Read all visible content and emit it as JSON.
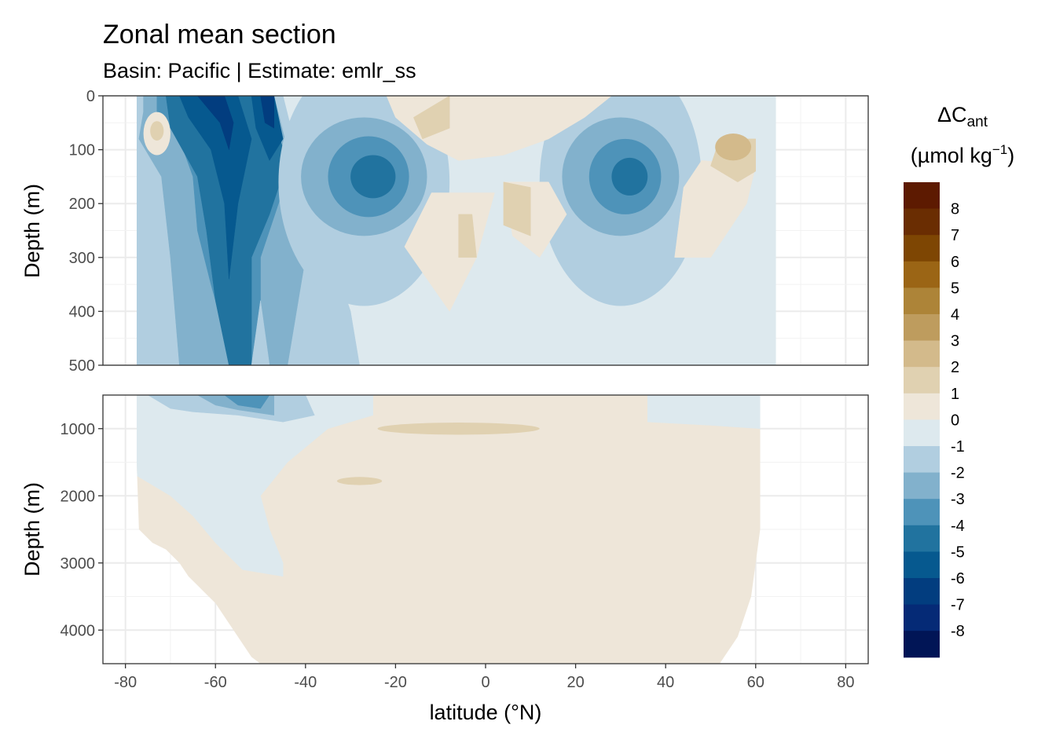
{
  "chart_data": {
    "type": "heatmap",
    "title": "Zonal mean section",
    "subtitle": "Basin: Pacific | Estimate: emlr_ss",
    "xlabel": "latitude (°N)",
    "xlim": [
      -85,
      85
    ],
    "x_ticks": [
      -80,
      -60,
      -40,
      -20,
      0,
      20,
      40,
      60,
      80
    ],
    "grid": true,
    "colors": {
      "-8": "#011556",
      "-7": "#052a76",
      "-6": "#023d7f",
      "-5": "#06598f",
      "-4": "#21739f",
      "-3": "#4e93b9",
      "-2": "#82b1cc",
      "-1": "#b1cee0",
      "0": "#dde9ee",
      "1": "#eee6d9",
      "2": "#e0d1b1",
      "3": "#d3ba8b",
      "4": "#be9c5e",
      "5": "#ad8438",
      "6": "#9b6515",
      "7": "#7e4603",
      "8": "#6a2d02",
      "9": "#5d1a01"
    },
    "panels": [
      {
        "name": "upper",
        "ylabel": "Depth (m)",
        "ylim": [
          500,
          0
        ],
        "y_ticks": [
          0,
          100,
          200,
          300,
          400,
          500
        ],
        "data_extent": {
          "lat_min": -77.5,
          "lat_max": 64.5
        },
        "background": 0,
        "regions": [
          {
            "value": -1,
            "type": "poly",
            "points": [
              [
                -77.5,
                0
              ],
              [
                -45,
                0
              ],
              [
                -42,
                100
              ],
              [
                -36,
                200
              ],
              [
                -34,
                300
              ],
              [
                -30,
                400
              ],
              [
                -28,
                500
              ],
              [
                -77.5,
                500
              ]
            ]
          },
          {
            "value": -2,
            "type": "poly",
            "points": [
              [
                -76,
                0
              ],
              [
                -47,
                0
              ],
              [
                -44,
                100
              ],
              [
                -42,
                200
              ],
              [
                -40,
                300
              ],
              [
                -42,
                400
              ],
              [
                -44,
                500
              ],
              [
                -68,
                500
              ],
              [
                -70,
                300
              ],
              [
                -72,
                150
              ],
              [
                -77,
                80
              ],
              [
                -76,
                30
              ]
            ]
          },
          {
            "value": -3,
            "type": "poly",
            "points": [
              [
                -73,
                0
              ],
              [
                -48,
                0
              ],
              [
                -44,
                150
              ],
              [
                -50,
                300
              ],
              [
                -50,
                500
              ],
              [
                -56,
                500
              ],
              [
                -61,
                350
              ],
              [
                -64,
                250
              ],
              [
                -65,
                150
              ],
              [
                -68,
                80
              ],
              [
                -73,
                30
              ]
            ]
          },
          {
            "value": -4,
            "type": "poly",
            "points": [
              [
                -71,
                0
              ],
              [
                -50,
                0
              ],
              [
                -47,
                50
              ],
              [
                -44,
                120
              ],
              [
                -48,
                220
              ],
              [
                -52,
                300
              ],
              [
                -52,
                500
              ],
              [
                -57,
                500
              ],
              [
                -60,
                380
              ],
              [
                -62,
                250
              ],
              [
                -64,
                150
              ],
              [
                -70,
                60
              ]
            ]
          },
          {
            "value": -5,
            "type": "poly",
            "points": [
              [
                -68,
                0
              ],
              [
                -55,
                0
              ],
              [
                -52,
                80
              ],
              [
                -55,
                200
              ],
              [
                -57,
                340
              ],
              [
                -58,
                200
              ],
              [
                -61,
                100
              ],
              [
                -66,
                40
              ]
            ]
          },
          {
            "value": -5,
            "type": "poly",
            "points": [
              [
                -52,
                0
              ],
              [
                -47,
                0
              ],
              [
                -45,
                80
              ],
              [
                -48,
                120
              ],
              [
                -51,
                60
              ]
            ]
          },
          {
            "value": -6,
            "type": "poly",
            "points": [
              [
                -64,
                0
              ],
              [
                -58,
                0
              ],
              [
                -56,
                50
              ],
              [
                -57,
                100
              ],
              [
                -59,
                50
              ]
            ]
          },
          {
            "value": -6,
            "type": "poly",
            "points": [
              [
                -50,
                0
              ],
              [
                -47,
                0
              ],
              [
                -47,
                60
              ],
              [
                -49,
                50
              ]
            ]
          },
          {
            "value": -1,
            "type": "poly",
            "points": [
              [
                -52,
                500
              ],
              [
                -50,
                380
              ],
              [
                -48,
                500
              ]
            ]
          },
          {
            "value": -1,
            "type": "ellipse",
            "cx": -27,
            "cy": 160,
            "rx": 19,
            "ry": 230
          },
          {
            "value": -2,
            "type": "ellipse",
            "cx": -27,
            "cy": 150,
            "rx": 14,
            "ry": 110
          },
          {
            "value": -3,
            "type": "ellipse",
            "cx": -26,
            "cy": 150,
            "rx": 9,
            "ry": 75
          },
          {
            "value": -4,
            "type": "ellipse",
            "cx": -25,
            "cy": 150,
            "rx": 5,
            "ry": 40
          },
          {
            "value": -1,
            "type": "ellipse",
            "cx": 30,
            "cy": 160,
            "rx": 18,
            "ry": 230
          },
          {
            "value": -2,
            "type": "ellipse",
            "cx": 30,
            "cy": 150,
            "rx": 13,
            "ry": 110
          },
          {
            "value": -3,
            "type": "ellipse",
            "cx": 31,
            "cy": 150,
            "rx": 8,
            "ry": 70
          },
          {
            "value": -4,
            "type": "ellipse",
            "cx": 32,
            "cy": 150,
            "rx": 4,
            "ry": 35
          },
          {
            "value": 1,
            "type": "ellipse",
            "cx": -73,
            "cy": 70,
            "rx": 3,
            "ry": 40
          },
          {
            "value": 2,
            "type": "ellipse",
            "cx": -73,
            "cy": 65,
            "rx": 1.5,
            "ry": 18
          },
          {
            "value": 1,
            "type": "poly",
            "points": [
              [
                -22,
                0
              ],
              [
                -20,
                40
              ],
              [
                -13,
                90
              ],
              [
                -6,
                120
              ],
              [
                4,
                110
              ],
              [
                14,
                80
              ],
              [
                22,
                40
              ],
              [
                28,
                0
              ]
            ]
          },
          {
            "value": 1,
            "type": "poly",
            "points": [
              [
                -12,
                180
              ],
              [
                -18,
                280
              ],
              [
                -8,
                400
              ],
              [
                -2,
                300
              ],
              [
                2,
                180
              ]
            ]
          },
          {
            "value": 1,
            "type": "poly",
            "points": [
              [
                4,
                160
              ],
              [
                6,
                260
              ],
              [
                12,
                300
              ],
              [
                18,
                220
              ],
              [
                14,
                160
              ]
            ]
          },
          {
            "value": 2,
            "type": "poly",
            "points": [
              [
                -8,
                0
              ],
              [
                -8,
                60
              ],
              [
                -14,
                80
              ],
              [
                -16,
                40
              ]
            ]
          },
          {
            "value": 2,
            "type": "poly",
            "points": [
              [
                4,
                160
              ],
              [
                4,
                240
              ],
              [
                10,
                260
              ],
              [
                10,
                170
              ]
            ]
          },
          {
            "value": 2,
            "type": "poly",
            "points": [
              [
                -6,
                220
              ],
              [
                -6,
                300
              ],
              [
                -2,
                300
              ],
              [
                -3,
                220
              ]
            ]
          },
          {
            "value": 1,
            "type": "poly",
            "points": [
              [
                48,
                120
              ],
              [
                44,
                170
              ],
              [
                42,
                300
              ],
              [
                50,
                300
              ],
              [
                58,
                200
              ],
              [
                60,
                130
              ]
            ]
          },
          {
            "value": 2,
            "type": "poly",
            "points": [
              [
                52,
                80
              ],
              [
                50,
                130
              ],
              [
                56,
                160
              ],
              [
                60,
                140
              ],
              [
                60,
                80
              ]
            ]
          },
          {
            "value": 3,
            "type": "ellipse",
            "cx": 55,
            "cy": 95,
            "rx": 4,
            "ry": 25
          }
        ]
      },
      {
        "name": "lower",
        "ylabel": "Depth (m)",
        "ylim": [
          4500,
          500
        ],
        "y_ticks": [
          1000,
          2000,
          3000,
          4000
        ],
        "data_extent": {
          "lat_min": -77.5,
          "lat_max": 61
        },
        "background": 1,
        "regions": [
          {
            "value": 0,
            "type": "poly",
            "points": [
              [
                -77.5,
                500
              ],
              [
                -25,
                500
              ],
              [
                -25,
                800
              ],
              [
                -35,
                1000
              ],
              [
                -44,
                1500
              ],
              [
                -50,
                2000
              ],
              [
                -48,
                2500
              ],
              [
                -45,
                3000
              ],
              [
                -45,
                3200
              ],
              [
                -54,
                3100
              ],
              [
                -60,
                2700
              ],
              [
                -65,
                2300
              ],
              [
                -70,
                2000
              ],
              [
                -75,
                1800
              ],
              [
                -77.5,
                1700
              ]
            ]
          },
          {
            "value": 0,
            "type": "poly",
            "points": [
              [
                36,
                500
              ],
              [
                61,
                500
              ],
              [
                61,
                1000
              ],
              [
                50,
                950
              ],
              [
                36,
                900
              ]
            ]
          },
          {
            "value": -1,
            "type": "poly",
            "points": [
              [
                -75,
                500
              ],
              [
                -40,
                500
              ],
              [
                -38,
                800
              ],
              [
                -45,
                900
              ],
              [
                -55,
                800
              ],
              [
                -65,
                750
              ],
              [
                -70,
                700
              ]
            ]
          },
          {
            "value": -2,
            "type": "poly",
            "points": [
              [
                -64,
                500
              ],
              [
                -47,
                500
              ],
              [
                -47,
                800
              ],
              [
                -55,
                720
              ],
              [
                -60,
                650
              ]
            ]
          },
          {
            "value": -3,
            "type": "poly",
            "points": [
              [
                -58,
                500
              ],
              [
                -48,
                500
              ],
              [
                -50,
                700
              ],
              [
                -55,
                650
              ]
            ]
          },
          {
            "value": 2,
            "type": "ellipse",
            "cx": -6,
            "cy": 1000,
            "rx": 18,
            "ry": 90
          },
          {
            "value": 2,
            "type": "ellipse",
            "cx": -28,
            "cy": 1780,
            "rx": 5,
            "ry": 60
          }
        ],
        "floor": [
          [
            -77.5,
            1500
          ],
          [
            -77,
            2500
          ],
          [
            -74,
            2700
          ],
          [
            -71,
            2800
          ],
          [
            -68,
            3000
          ],
          [
            -66,
            3200
          ],
          [
            -63,
            3400
          ],
          [
            -60,
            3600
          ],
          [
            -58,
            3800
          ],
          [
            -56,
            4000
          ],
          [
            -54,
            4200
          ],
          [
            -52,
            4400
          ],
          [
            -50,
            4500
          ],
          [
            52,
            4500
          ],
          [
            54,
            4300
          ],
          [
            55,
            4200
          ],
          [
            56,
            4100
          ],
          [
            57,
            3900
          ],
          [
            58,
            3700
          ],
          [
            59,
            3500
          ],
          [
            60,
            3000
          ],
          [
            61,
            2500
          ],
          [
            61,
            1500
          ]
        ]
      }
    ],
    "legend": {
      "position": "right",
      "title": "ΔC",
      "title_sub": "ant",
      "units_prefix": "(µmol kg",
      "units_sup": "−1",
      "units_suffix": ")",
      "labels": [
        "8",
        "7",
        "6",
        "5",
        "4",
        "3",
        "2",
        "1",
        "0",
        "-1",
        "-2",
        "-3",
        "-4",
        "-5",
        "-6",
        "-7",
        "-8"
      ]
    }
  }
}
